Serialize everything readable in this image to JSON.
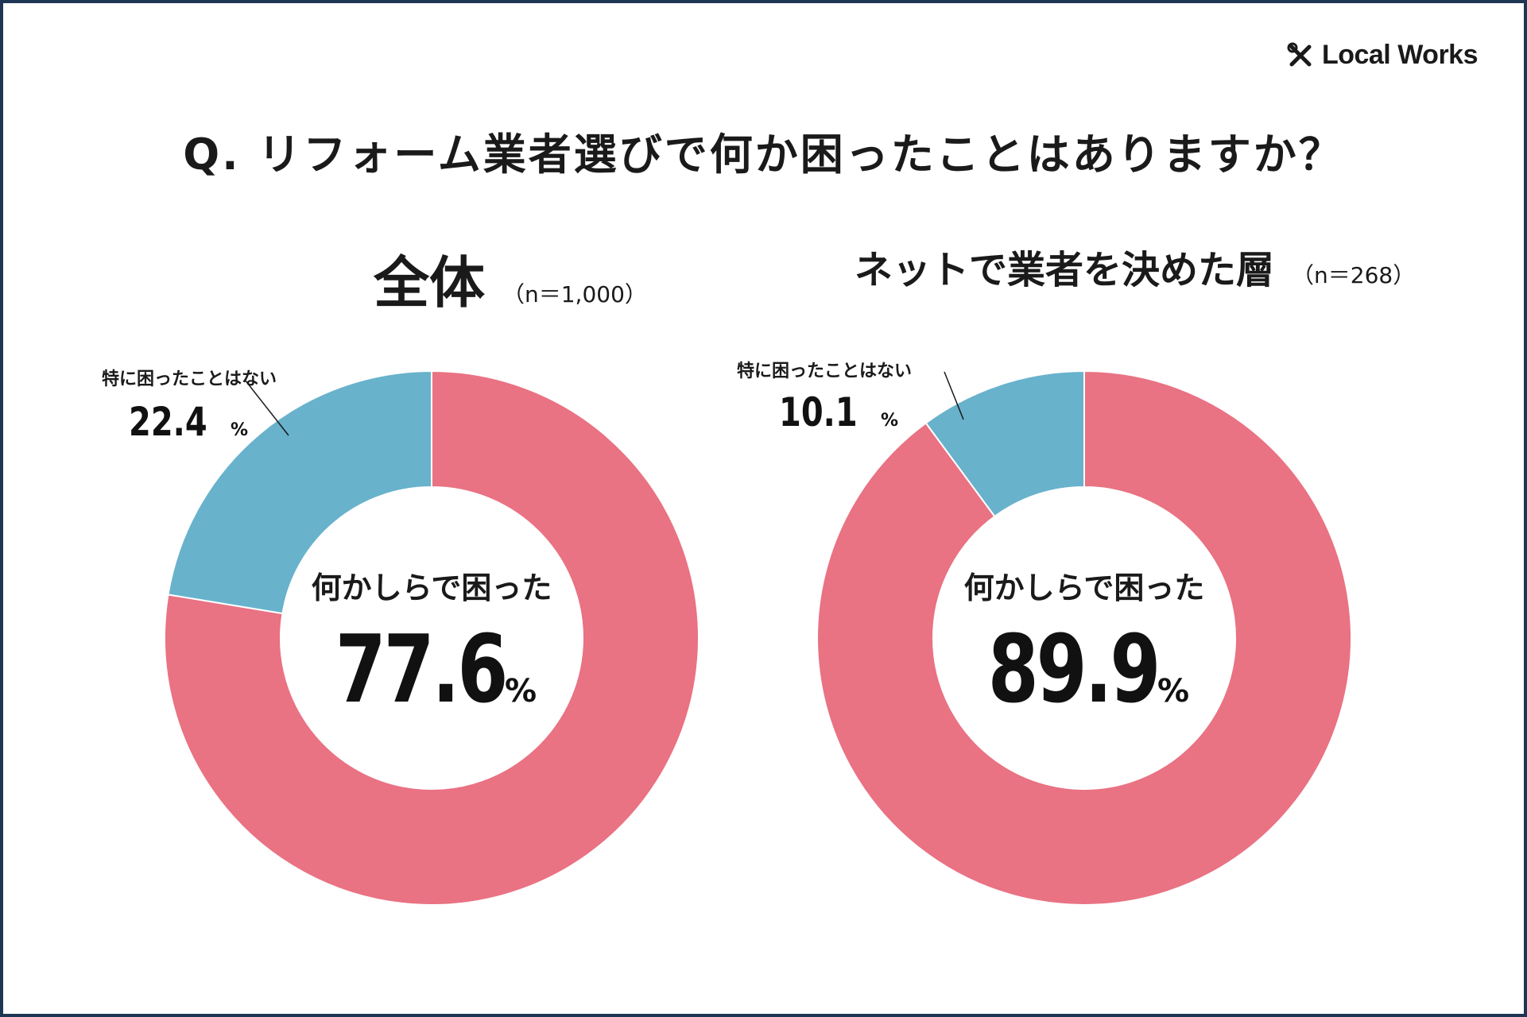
{
  "brand": {
    "name": "Local Works",
    "icon": "tools-icon"
  },
  "question": "Q. リフォーム業者選びで何か困ったことはありますか？",
  "colors": {
    "troubled": "#E97283",
    "not_troubled": "#68B2CC",
    "frame": "#1F3554"
  },
  "chart_data": [
    {
      "type": "pie",
      "title": "全体",
      "sample": "（n＝1,000）",
      "slices": [
        {
          "label": "何かしらで困った",
          "value": 77.6,
          "display": "77.6"
        },
        {
          "label": "特に困ったことはない",
          "value": 22.4,
          "display": "22.4"
        }
      ],
      "unit": "%"
    },
    {
      "type": "pie",
      "title": "ネットで業者を決めた層",
      "sample": "（n＝268）",
      "slices": [
        {
          "label": "何かしらで困った",
          "value": 89.9,
          "display": "89.9"
        },
        {
          "label": "特に困ったことはない",
          "value": 10.1,
          "display": "10.1"
        }
      ],
      "unit": "%"
    }
  ]
}
